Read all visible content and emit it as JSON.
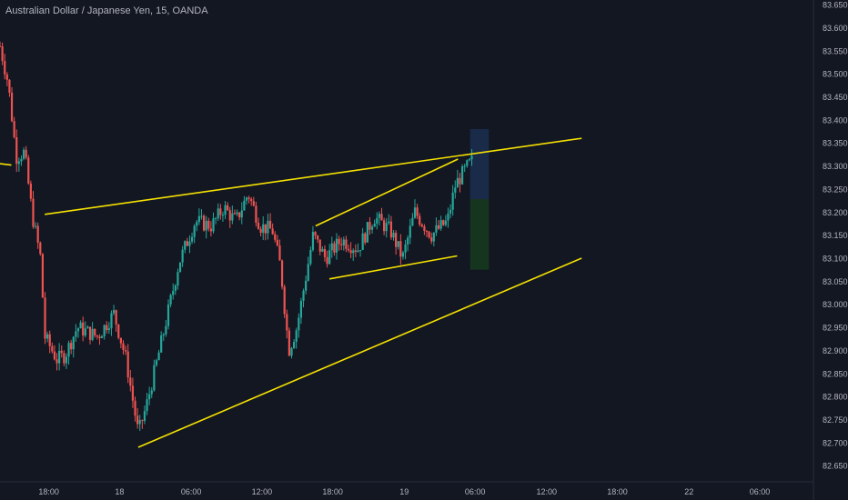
{
  "header": {
    "title": "Australian Dollar / Japanese Yen, 15, OANDA"
  },
  "colors": {
    "background": "#131722",
    "axis_text": "#b2b5be",
    "up": "#26a69a",
    "down": "#ef5350",
    "trendline": "#f5e100",
    "profit_zone": "#1c2d4f",
    "loss_zone": "#16391f"
  },
  "chart_data": {
    "type": "candlestick",
    "symbol": "AUDJPY",
    "interval": "15",
    "y_ticks": [
      "83.650",
      "83.600",
      "83.550",
      "83.500",
      "83.450",
      "83.400",
      "83.350",
      "83.300",
      "83.250",
      "83.200",
      "83.150",
      "83.100",
      "83.050",
      "83.000",
      "82.950",
      "82.900",
      "82.850",
      "82.800",
      "82.750",
      "82.700",
      "82.650"
    ],
    "x_ticks": [
      "18:00",
      "18",
      "06:00",
      "12:00",
      "18:00",
      "19",
      "06:00",
      "12:00",
      "18:00",
      "22",
      "06:00"
    ],
    "ylim": [
      82.615,
      83.66
    ],
    "grid": false,
    "trendlines": [
      {
        "name": "upper-channel",
        "p1": [
          0.055,
          83.195
        ],
        "p2": [
          0.715,
          83.36
        ]
      },
      {
        "name": "lower-channel",
        "p1": [
          0.17,
          82.69
        ],
        "p2": [
          0.715,
          83.1
        ]
      },
      {
        "name": "flag-upper",
        "p1": [
          0.388,
          83.17
        ],
        "p2": [
          0.563,
          83.315
        ]
      },
      {
        "name": "flag-lower",
        "p1": [
          0.405,
          83.055
        ],
        "p2": [
          0.562,
          83.105
        ]
      },
      {
        "name": "left-stub",
        "p1": [
          0.0,
          83.305
        ],
        "p2": [
          0.014,
          83.302
        ]
      }
    ],
    "position": {
      "x_start": 0.578,
      "x_end": 0.601,
      "target": 83.38,
      "entry": 83.228,
      "stop": 83.075
    },
    "waypoints": [
      [
        0.0,
        83.56
      ],
      [
        0.01,
        83.48
      ],
      [
        0.02,
        83.32
      ],
      [
        0.03,
        83.33
      ],
      [
        0.04,
        83.19
      ],
      [
        0.05,
        83.1
      ],
      [
        0.055,
        82.93
      ],
      [
        0.07,
        82.88
      ],
      [
        0.08,
        82.89
      ],
      [
        0.095,
        82.95
      ],
      [
        0.12,
        82.93
      ],
      [
        0.14,
        82.98
      ],
      [
        0.155,
        82.88
      ],
      [
        0.17,
        82.72
      ],
      [
        0.18,
        82.78
      ],
      [
        0.2,
        82.93
      ],
      [
        0.22,
        83.09
      ],
      [
        0.24,
        83.18
      ],
      [
        0.26,
        83.17
      ],
      [
        0.275,
        83.21
      ],
      [
        0.29,
        83.18
      ],
      [
        0.305,
        83.24
      ],
      [
        0.32,
        83.17
      ],
      [
        0.335,
        83.16
      ],
      [
        0.345,
        83.08
      ],
      [
        0.355,
        82.9
      ],
      [
        0.365,
        82.95
      ],
      [
        0.375,
        83.05
      ],
      [
        0.385,
        83.15
      ],
      [
        0.4,
        83.1
      ],
      [
        0.42,
        83.14
      ],
      [
        0.44,
        83.12
      ],
      [
        0.46,
        83.19
      ],
      [
        0.48,
        83.16
      ],
      [
        0.495,
        83.1
      ],
      [
        0.51,
        83.2
      ],
      [
        0.53,
        83.15
      ],
      [
        0.55,
        83.18
      ],
      [
        0.56,
        83.26
      ],
      [
        0.575,
        83.3
      ],
      [
        0.58,
        83.31
      ]
    ]
  }
}
